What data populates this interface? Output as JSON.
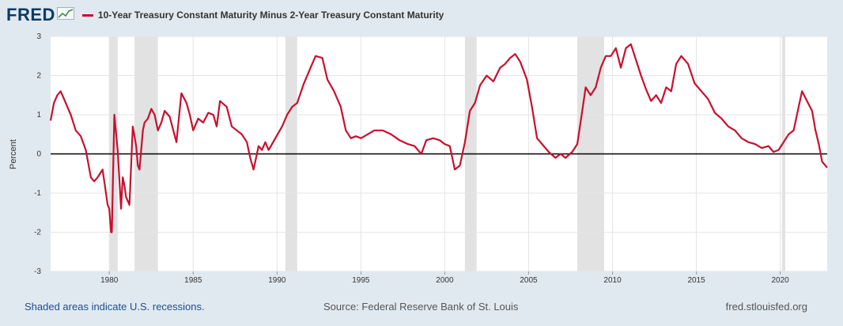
{
  "header": {
    "logo": "FRED",
    "logo_icon": "line-chart-icon",
    "series_title": "10-Year Treasury Constant Maturity Minus 2-Year Treasury Constant Maturity"
  },
  "footer": {
    "recession_note": "Shaded areas indicate U.S. recessions.",
    "source": "Source: Federal Reserve Bank of St. Louis",
    "site": "fred.stlouisfed.org"
  },
  "colors": {
    "series": "#c8102e",
    "recession": "#e2e2e2",
    "background": "#e1e9f0",
    "zero_line": "#000000"
  },
  "chart_data": {
    "type": "line",
    "ylabel": "Percent",
    "xlim": [
      1976.5,
      2022.8
    ],
    "ylim": [
      -3,
      3
    ],
    "x_ticks": [
      1980,
      1985,
      1990,
      1995,
      2000,
      2005,
      2010,
      2015,
      2020
    ],
    "y_ticks": [
      3,
      2,
      1,
      0,
      -1,
      -2,
      -3
    ],
    "grid": true,
    "zero_line": true,
    "recessions": [
      [
        1980.0,
        1980.5
      ],
      [
        1981.5,
        1982.9
      ],
      [
        1990.5,
        1991.2
      ],
      [
        2001.2,
        2001.9
      ],
      [
        2007.9,
        2009.5
      ],
      [
        2020.1,
        2020.3
      ]
    ],
    "series": [
      {
        "x": [
          1976.5,
          1976.7,
          1976.9,
          1977.1,
          1977.3,
          1977.5,
          1977.7,
          1978.0,
          1978.3,
          1978.6,
          1978.9,
          1979.1,
          1979.3,
          1979.6,
          1979.8,
          1979.9,
          1980.0,
          1980.1,
          1980.15,
          1980.3,
          1980.5,
          1980.7,
          1980.8,
          1980.9,
          1981.0,
          1981.2,
          1981.4,
          1981.6,
          1981.7,
          1981.8,
          1982.0,
          1982.1,
          1982.3,
          1982.5,
          1982.7,
          1982.9,
          1983.1,
          1983.3,
          1983.6,
          1984.0,
          1984.3,
          1984.6,
          1984.8,
          1985.0,
          1985.3,
          1985.6,
          1985.9,
          1986.2,
          1986.4,
          1986.6,
          1987.0,
          1987.3,
          1987.6,
          1987.9,
          1988.2,
          1988.4,
          1988.6,
          1988.9,
          1989.1,
          1989.3,
          1989.5,
          1989.9,
          1990.3,
          1990.6,
          1990.9,
          1991.2,
          1991.6,
          1992.0,
          1992.3,
          1992.7,
          1993.0,
          1993.4,
          1993.8,
          1994.1,
          1994.4,
          1994.7,
          1995.0,
          1995.4,
          1995.8,
          1996.3,
          1996.8,
          1997.3,
          1997.8,
          1998.2,
          1998.6,
          1998.9,
          1999.3,
          1999.7,
          2000.0,
          2000.3,
          2000.6,
          2000.9,
          2001.2,
          2001.5,
          2001.8,
          2002.1,
          2002.5,
          2002.9,
          2003.3,
          2003.6,
          2003.9,
          2004.2,
          2004.5,
          2004.9,
          2005.2,
          2005.5,
          2005.9,
          2006.2,
          2006.6,
          2006.9,
          2007.2,
          2007.6,
          2007.9,
          2008.2,
          2008.4,
          2008.7,
          2009.0,
          2009.3,
          2009.6,
          2009.9,
          2010.2,
          2010.5,
          2010.8,
          2011.1,
          2011.4,
          2011.7,
          2012.0,
          2012.3,
          2012.6,
          2012.9,
          2013.2,
          2013.5,
          2013.8,
          2014.1,
          2014.5,
          2014.9,
          2015.3,
          2015.7,
          2016.1,
          2016.5,
          2016.9,
          2017.3,
          2017.7,
          2018.1,
          2018.5,
          2018.9,
          2019.3,
          2019.6,
          2019.9,
          2020.2,
          2020.5,
          2020.8,
          2021.1,
          2021.3,
          2021.6,
          2021.9,
          2022.1,
          2022.3,
          2022.5,
          2022.8
        ],
        "y": [
          0.85,
          1.3,
          1.5,
          1.6,
          1.4,
          1.2,
          1.0,
          0.6,
          0.45,
          0.1,
          -0.6,
          -0.7,
          -0.6,
          -0.4,
          -1.0,
          -1.3,
          -1.4,
          -2.0,
          -2.0,
          1.0,
          0.1,
          -1.4,
          -0.6,
          -0.8,
          -1.1,
          -1.3,
          0.7,
          0.2,
          -0.3,
          -0.4,
          0.6,
          0.8,
          0.9,
          1.15,
          1.0,
          0.6,
          0.8,
          1.1,
          0.95,
          0.3,
          1.55,
          1.3,
          1.0,
          0.6,
          0.9,
          0.8,
          1.05,
          1.0,
          0.7,
          1.35,
          1.2,
          0.7,
          0.6,
          0.5,
          0.3,
          -0.1,
          -0.4,
          0.2,
          0.1,
          0.3,
          0.1,
          0.4,
          0.7,
          1.0,
          1.2,
          1.3,
          1.8,
          2.2,
          2.5,
          2.45,
          1.9,
          1.6,
          1.2,
          0.6,
          0.4,
          0.45,
          0.4,
          0.5,
          0.6,
          0.6,
          0.5,
          0.35,
          0.25,
          0.2,
          0.0,
          0.35,
          0.4,
          0.35,
          0.25,
          0.2,
          -0.4,
          -0.3,
          0.3,
          1.1,
          1.3,
          1.75,
          2.0,
          1.85,
          2.2,
          2.3,
          2.45,
          2.55,
          2.35,
          1.9,
          1.2,
          0.4,
          0.2,
          0.05,
          -0.1,
          0.0,
          -0.1,
          0.05,
          0.25,
          1.1,
          1.7,
          1.5,
          1.7,
          2.2,
          2.5,
          2.5,
          2.7,
          2.2,
          2.7,
          2.8,
          2.4,
          2.0,
          1.65,
          1.35,
          1.5,
          1.3,
          1.7,
          1.6,
          2.3,
          2.5,
          2.3,
          1.8,
          1.6,
          1.4,
          1.05,
          0.9,
          0.7,
          0.6,
          0.4,
          0.3,
          0.25,
          0.15,
          0.2,
          0.05,
          0.1,
          0.3,
          0.5,
          0.6,
          1.2,
          1.6,
          1.35,
          1.1,
          0.6,
          0.25,
          -0.2,
          -0.35
        ]
      }
    ]
  }
}
